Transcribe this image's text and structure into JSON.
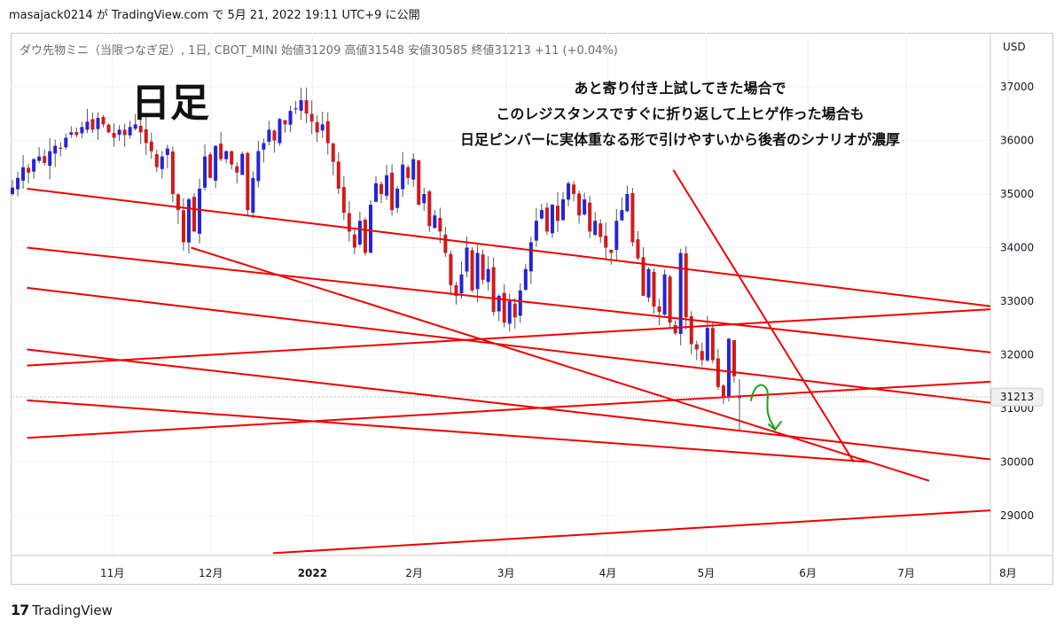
{
  "header": {
    "text": "masajack0214 が TradingView.com で 5月 21, 2022 19:11 UTC+9 に公開"
  },
  "legend": {
    "text": "ダウ先物ミニ（当限つなぎ足）, 1日, CBOT_MINI  始値31209  高値31548  安値30585  終値31213  +11 (+0.04%)"
  },
  "footer": {
    "brand": "TradingView",
    "logo_mark": "17"
  },
  "colors": {
    "up": "#2424d6",
    "down": "#d11a1a",
    "trendline": "#f00000",
    "annotation_green": "#1aa31a",
    "price_tag": "#f0f0f0"
  },
  "chart_data": {
    "type": "candlestick",
    "currency_label": "USD",
    "title": "日足",
    "annotation_lines": [
      "あと寄り付き上試してきた場合で",
      "このレジスタンスですぐに折り返して上ヒゲ作った場合も",
      "日足ピンバーに実体重なる形で引けやすいから後者のシナリオが濃厚"
    ],
    "y_ticks": [
      "37000",
      "36000",
      "35000",
      "34000",
      "33000",
      "32000",
      "31000",
      "30000",
      "29000"
    ],
    "ylim": [
      28300,
      37800
    ],
    "x_ticks": [
      "11月",
      "12月",
      "2022",
      "2月",
      "3月",
      "4月",
      "5月",
      "6月",
      "7月",
      "8月"
    ],
    "last_price": "31213",
    "ohlc_last": {
      "open": 31209,
      "high": 31548,
      "low": 30585,
      "close": 31213
    },
    "closes": [
      35120,
      35300,
      35500,
      35400,
      35650,
      35700,
      35580,
      35800,
      35900,
      35850,
      36050,
      36150,
      36100,
      36250,
      36350,
      36200,
      36420,
      36300,
      36150,
      36050,
      36200,
      36100,
      36250,
      36300,
      36150,
      35950,
      35800,
      35500,
      35700,
      35850,
      35000,
      34700,
      34100,
      34900,
      34300,
      35100,
      35700,
      35300,
      35900,
      35650,
      35800,
      35550,
      35400,
      35750,
      34700,
      35300,
      35800,
      35950,
      36200,
      36000,
      36400,
      36300,
      36550,
      36600,
      36750,
      36500,
      36350,
      36150,
      36300,
      35950,
      35600,
      35100,
      34650,
      34300,
      34000,
      34500,
      33900,
      34800,
      35200,
      35000,
      35350,
      34700,
      35100,
      35550,
      35300,
      35650,
      34800,
      35000,
      34400,
      34600,
      34300,
      33900,
      33300,
      33100,
      33500,
      34000,
      33200,
      33900,
      33400,
      33600,
      32800,
      33100,
      32600,
      33000,
      32700,
      33200,
      33600,
      34100,
      34500,
      34700,
      34300,
      34800,
      34500,
      34900,
      35200,
      35000,
      34600,
      34900,
      34300,
      34500,
      34200,
      34000,
      33900,
      34500,
      34700,
      35000,
      34100,
      33800,
      33100,
      33600,
      32900,
      32800,
      33500,
      32600,
      32400,
      33900,
      32700,
      32200,
      32100,
      31900,
      32500,
      31900,
      31400,
      31200,
      32300,
      31600,
      31213
    ],
    "trendlines": [
      {
        "from": [
          "2021-10-06",
          35100
        ],
        "to": [
          "2022-08-10",
          32800
        ]
      },
      {
        "from": [
          "2021-10-06",
          34000
        ],
        "to": [
          "2022-08-10",
          31950
        ]
      },
      {
        "from": [
          "2021-10-06",
          33250
        ],
        "to": [
          "2022-08-10",
          31000
        ]
      },
      {
        "from": [
          "2021-10-06",
          32100
        ],
        "to": [
          "2022-08-10",
          29950
        ]
      },
      {
        "from": [
          "2021-10-06",
          31150
        ],
        "to": [
          "2022-06-20",
          30000
        ]
      },
      {
        "from": [
          "2021-10-06",
          30450
        ],
        "to": [
          "2022-08-10",
          31550
        ]
      },
      {
        "from": [
          "2021-10-06",
          31800
        ],
        "to": [
          "2022-08-10",
          32900
        ]
      },
      {
        "from": [
          "2021-11-25",
          34000
        ],
        "to": [
          "2022-07-08",
          29650
        ]
      },
      {
        "from": [
          "2021-12-20",
          28300
        ],
        "to": [
          "2022-08-10",
          29150
        ]
      },
      {
        "from": [
          "2022-04-21",
          35450
        ],
        "to": [
          "2022-06-15",
          30000
        ]
      }
    ]
  }
}
